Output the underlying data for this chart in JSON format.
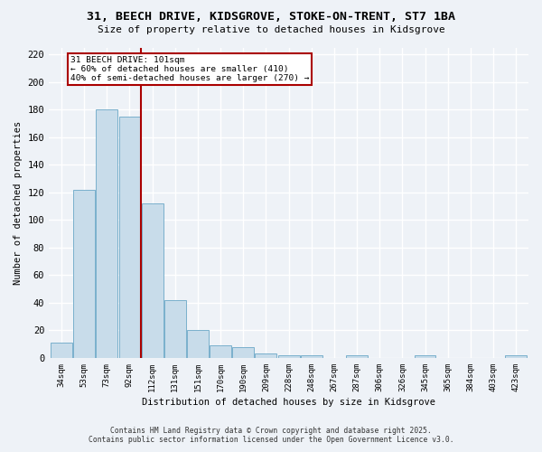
{
  "title_line1": "31, BEECH DRIVE, KIDSGROVE, STOKE-ON-TRENT, ST7 1BA",
  "title_line2": "Size of property relative to detached houses in Kidsgrove",
  "xlabel": "Distribution of detached houses by size in Kidsgrove",
  "ylabel": "Number of detached properties",
  "categories": [
    "34sqm",
    "53sqm",
    "73sqm",
    "92sqm",
    "112sqm",
    "131sqm",
    "151sqm",
    "170sqm",
    "190sqm",
    "209sqm",
    "228sqm",
    "248sqm",
    "267sqm",
    "287sqm",
    "306sqm",
    "326sqm",
    "345sqm",
    "365sqm",
    "384sqm",
    "403sqm",
    "423sqm"
  ],
  "values": [
    11,
    122,
    180,
    175,
    112,
    42,
    20,
    9,
    8,
    3,
    2,
    2,
    0,
    2,
    0,
    0,
    2,
    0,
    0,
    0,
    2
  ],
  "bar_color": "#c8dcea",
  "bar_edgecolor": "#7ab0cc",
  "vline_x_pos": 3.5,
  "vline_color": "#aa0000",
  "annotation_lines": [
    "31 BEECH DRIVE: 101sqm",
    "← 60% of detached houses are smaller (410)",
    "40% of semi-detached houses are larger (270) →"
  ],
  "ylim": [
    0,
    225
  ],
  "yticks": [
    0,
    20,
    40,
    60,
    80,
    100,
    120,
    140,
    160,
    180,
    200,
    220
  ],
  "background_color": "#eef2f7",
  "grid_color": "#ffffff",
  "footer_line1": "Contains HM Land Registry data © Crown copyright and database right 2025.",
  "footer_line2": "Contains public sector information licensed under the Open Government Licence v3.0."
}
